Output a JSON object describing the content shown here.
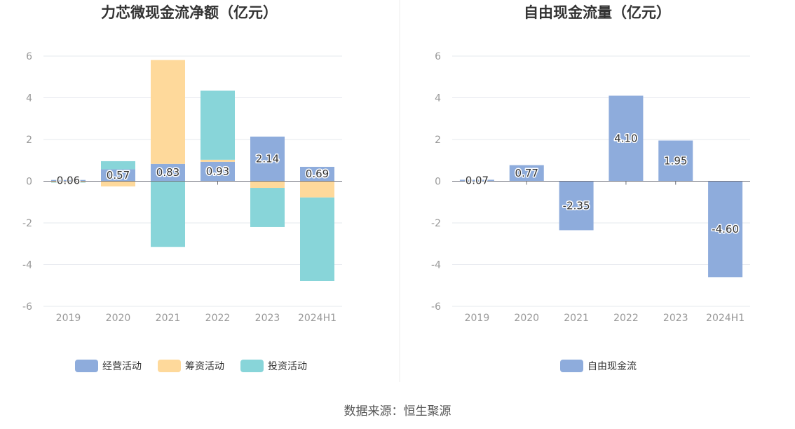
{
  "source": "数据来源：恒生聚源",
  "chart_data": [
    {
      "type": "bar",
      "stacked": true,
      "title": "力芯微现金流净额（亿元）",
      "categories": [
        "2019",
        "2020",
        "2021",
        "2022",
        "2023",
        "2024H1"
      ],
      "ylim": [
        -6,
        6
      ],
      "yticks": [
        6,
        4,
        2,
        0,
        -2,
        -4,
        -6
      ],
      "grid": true,
      "legend_position": "bottom",
      "series": [
        {
          "name": "经营活动",
          "color": "#8eacdc",
          "values": [
            0.06,
            0.57,
            0.83,
            0.93,
            2.14,
            0.69
          ],
          "labels": [
            "0.06",
            "0.57",
            "0.83",
            "0.93",
            "2.14",
            "0.69"
          ]
        },
        {
          "name": "筹资活动",
          "color": "#fed99b",
          "values": [
            -0.05,
            -0.25,
            4.98,
            0.1,
            -0.32,
            -0.78
          ]
        },
        {
          "name": "投资活动",
          "color": "#88d5d9",
          "values": [
            -0.02,
            0.39,
            -3.15,
            3.31,
            -1.88,
            -4.01
          ]
        }
      ]
    },
    {
      "type": "bar",
      "title": "自由现金流量（亿元）",
      "categories": [
        "2019",
        "2020",
        "2021",
        "2022",
        "2023",
        "2024H1"
      ],
      "ylim": [
        -6,
        6
      ],
      "yticks": [
        6,
        4,
        2,
        0,
        -2,
        -4,
        -6
      ],
      "grid": true,
      "legend_position": "bottom",
      "series": [
        {
          "name": "自由现金流",
          "color": "#8eacdc",
          "values": [
            0.07,
            0.77,
            -2.35,
            4.1,
            1.95,
            -4.6
          ],
          "labels": [
            "0.07",
            "0.77",
            "-2.35",
            "4.10",
            "1.95",
            "-4.60"
          ]
        }
      ]
    }
  ]
}
